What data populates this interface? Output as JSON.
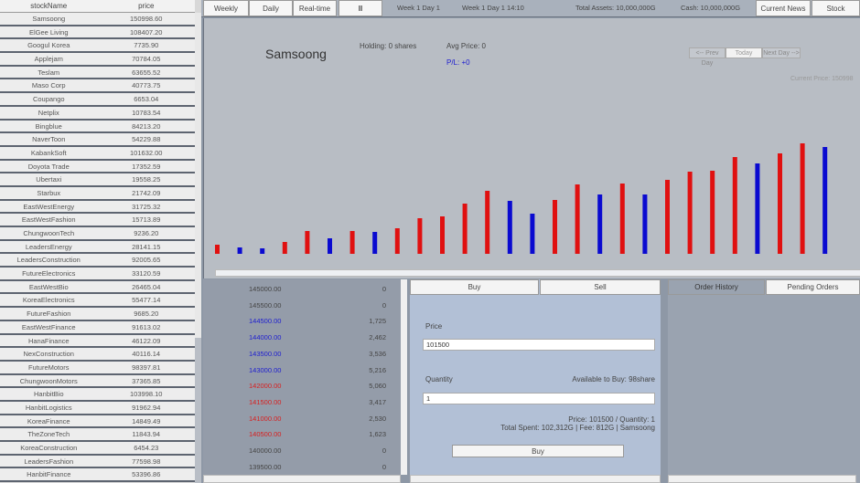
{
  "stock_list": {
    "headers": [
      "stockName",
      "price"
    ],
    "rows": [
      [
        "Samsoong",
        "150998.60"
      ],
      [
        "ElGee Living",
        "108407.20"
      ],
      [
        "Googul Korea",
        "7735.90"
      ],
      [
        "Applejam",
        "70784.05"
      ],
      [
        "Teslam",
        "63655.52"
      ],
      [
        "Maso Corp",
        "40773.75"
      ],
      [
        "Coupango",
        "6653.04"
      ],
      [
        "Netplix",
        "10783.54"
      ],
      [
        "Bingblue",
        "84213.20"
      ],
      [
        "NaverToon",
        "54229.88"
      ],
      [
        "KabankSoft",
        "101632.00"
      ],
      [
        "Doyota Trade",
        "17352.59"
      ],
      [
        "Ubertaxi",
        "19558.25"
      ],
      [
        "Starbux",
        "21742.09"
      ],
      [
        "EastWestEnergy",
        "31725.32"
      ],
      [
        "EastWestFashion",
        "15713.89"
      ],
      [
        "ChungwoonTech",
        "9236.20"
      ],
      [
        "LeadersEnergy",
        "28141.15"
      ],
      [
        "LeadersConstruction",
        "92005.65"
      ],
      [
        "FutureElectronics",
        "33120.59"
      ],
      [
        "EastWestBio",
        "26465.04"
      ],
      [
        "KoreaElectronics",
        "55477.14"
      ],
      [
        "FutureFashion",
        "9685.20"
      ],
      [
        "EastWestFinance",
        "91613.02"
      ],
      [
        "HanaFinance",
        "46122.09"
      ],
      [
        "NexConstruction",
        "40116.14"
      ],
      [
        "FutureMotors",
        "98397.81"
      ],
      [
        "ChungwoonMotors",
        "37365.85"
      ],
      [
        "HanbitBio",
        "103998.10"
      ],
      [
        "HanbitLogistics",
        "91962.94"
      ],
      [
        "KoreaFinance",
        "14849.49"
      ],
      [
        "TheZoneTech",
        "11843.94"
      ],
      [
        "KoreaConstruction",
        "6454.23"
      ],
      [
        "LeadersFashion",
        "77598.98"
      ],
      [
        "HanbitFinance",
        "53396.86"
      ]
    ]
  },
  "toolbar": {
    "weekly": "Weekly",
    "daily": "Daily",
    "realtime": "Real-time",
    "pause": "II",
    "week_day": "Week 1 Day 1",
    "week_day_time": "Week 1 Day 1 14:10",
    "total_assets": "Total Assets: 10,000,000G",
    "cash": "Cash: 10,000,000G",
    "current_news": "Current News",
    "stock_holdings": "Stock Holdings"
  },
  "detail": {
    "name": "Samsoong",
    "holding": "Holding: 0 shares",
    "avg_price": "Avg Price: 0",
    "pl": "P/L: +0",
    "prev_day": "<-- Prev Day",
    "today": "Today",
    "next_day": "Next Day -->",
    "current_price": "Current Price: 150998"
  },
  "chart_data": {
    "type": "bar",
    "title": "",
    "colors": {
      "up": "#e01010",
      "down": "#0a0ad0"
    },
    "values": [
      10,
      7,
      6,
      13,
      25,
      17,
      25,
      24,
      28,
      39,
      41,
      55,
      69,
      58,
      44,
      59,
      76,
      65,
      77,
      65,
      81,
      90,
      91,
      106,
      99,
      110,
      121,
      117
    ],
    "direction": [
      "up",
      "down",
      "down",
      "up",
      "up",
      "down",
      "up",
      "down",
      "up",
      "up",
      "up",
      "up",
      "up",
      "down",
      "down",
      "up",
      "up",
      "down",
      "up",
      "down",
      "up",
      "up",
      "up",
      "up",
      "down",
      "up",
      "up",
      "down"
    ]
  },
  "order_book": [
    {
      "price": "145000.00",
      "qty": "0",
      "side": "none"
    },
    {
      "price": "145500.00",
      "qty": "0",
      "side": "none"
    },
    {
      "price": "144500.00",
      "qty": "1,725",
      "side": "ask"
    },
    {
      "price": "144000.00",
      "qty": "2,462",
      "side": "ask"
    },
    {
      "price": "143500.00",
      "qty": "3,536",
      "side": "ask"
    },
    {
      "price": "143000.00",
      "qty": "5,216",
      "side": "ask"
    },
    {
      "price": "142000.00",
      "qty": "5,060",
      "side": "bid"
    },
    {
      "price": "141500.00",
      "qty": "3,417",
      "side": "bid"
    },
    {
      "price": "141000.00",
      "qty": "2,530",
      "side": "bid"
    },
    {
      "price": "140500.00",
      "qty": "1,623",
      "side": "bid"
    },
    {
      "price": "140000.00",
      "qty": "0",
      "side": "none"
    },
    {
      "price": "139500.00",
      "qty": "0",
      "side": "none"
    }
  ],
  "order": {
    "buy_tab": "Buy",
    "sell_tab": "Sell",
    "price_label": "Price",
    "price_value": "101500",
    "quantity_label": "Quantity",
    "available": "Available to Buy: 98share",
    "quantity_value": "1",
    "summary1": "Price: 101500 / Quantity: 1",
    "summary2": "Total Spent: 102,312G | Fee: 812G | Samsoong",
    "buy_button": "Buy"
  },
  "history": {
    "order_history": "Order History",
    "pending_orders": "Pending Orders"
  }
}
